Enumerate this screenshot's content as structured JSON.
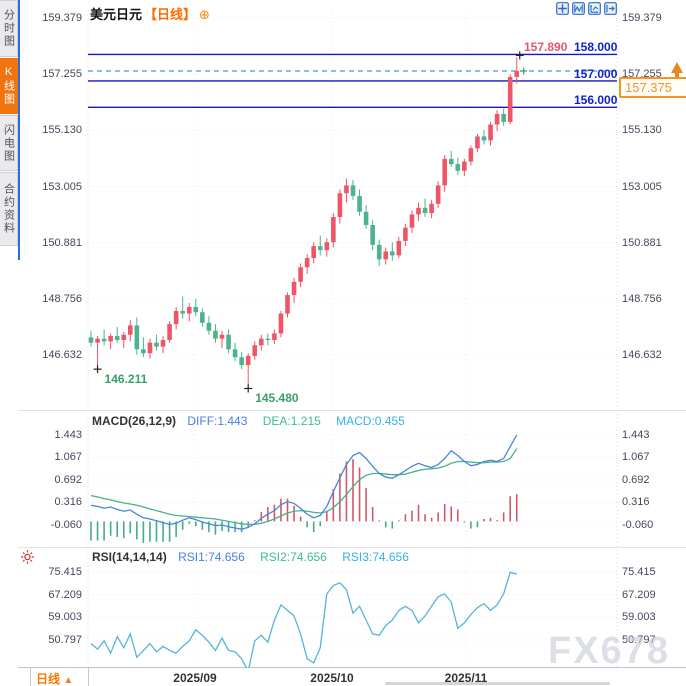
{
  "sidebar": {
    "tabs": [
      {
        "label": "分时图",
        "active": false
      },
      {
        "label": "K线图",
        "active": true
      },
      {
        "label": "闪电图",
        "active": false
      },
      {
        "label": "合约资料",
        "active": false
      }
    ]
  },
  "header": {
    "title": "美元日元",
    "period_tag": "【日线】",
    "plus_icon": "⊕",
    "toolbar_icons": [
      "crosshair",
      "time-range",
      "axis-scale",
      "export"
    ]
  },
  "price_axis": {
    "labels": [
      "159.379",
      "157.255",
      "155.130",
      "153.005",
      "150.881",
      "148.756",
      "146.632"
    ]
  },
  "levels": {
    "h_lines": [
      {
        "label": "158.000",
        "value": 158.0
      },
      {
        "label": "157.000",
        "value": 157.0
      },
      {
        "label": "156.000",
        "value": 156.0
      }
    ],
    "high_label": {
      "text": "157.890",
      "value": 157.89
    },
    "current": {
      "text": "157.375",
      "value": 157.375
    },
    "low_annotations": [
      {
        "text": "146.211",
        "value": 146.211,
        "index": 1
      },
      {
        "text": "145.480",
        "value": 145.48,
        "index": 24
      }
    ]
  },
  "macd_panel": {
    "title": "MACD(26,12,9)",
    "diff_label": "DIFF:1.443",
    "dea_label": "DEA:1.215",
    "macd_label": "MACD:0.455",
    "axis": [
      "1.443",
      "1.067",
      "0.692",
      "0.316",
      "-0.060"
    ]
  },
  "rsi_panel": {
    "title": "RSI(14,14,14)",
    "rsi1_label": "RSI1:74.656",
    "rsi2_label": "RSI2:74.656",
    "rsi3_label": "RSI3:74.656",
    "axis": [
      "75.415",
      "67.209",
      "59.003",
      "50.797"
    ]
  },
  "xaxis": {
    "labels": [
      "2025/09",
      "2025/10",
      "2025/11"
    ],
    "positions": [
      195,
      332,
      466
    ]
  },
  "bottom_bar": {
    "period": "日线",
    "arrow": "▲"
  },
  "watermark": "FX678",
  "colors": {
    "candle_up": "#ee5566",
    "candle_down": "#4cb38c",
    "hist_up": "#d05868",
    "hist_down": "#49a98d",
    "diff_line": "#4a86d8",
    "dea_line": "#46b28a",
    "rsi_line": "#56b4d9",
    "level_line": "#1416c8",
    "current_dash": "#35a0e0",
    "tag_orange": "#f59422",
    "active_tab": "#f0740f",
    "high_label_red": "#e8546c",
    "low_note_green": "#3aa06a"
  },
  "chart_data": {
    "type": "candlestick",
    "title": "美元日元 日线 (USD/JPY daily)",
    "main_ylim": [
      145.2,
      159.6
    ],
    "x_tick_labels": [
      "2025/09",
      "2025/10",
      "2025/11"
    ],
    "candles_ohlc": [
      [
        147.3,
        147.55,
        146.95,
        147.1
      ],
      [
        147.1,
        147.35,
        146.211,
        147.25
      ],
      [
        147.25,
        147.6,
        147.0,
        147.15
      ],
      [
        147.15,
        147.45,
        146.85,
        147.35
      ],
      [
        147.35,
        147.7,
        147.1,
        147.2
      ],
      [
        147.2,
        147.5,
        146.9,
        147.4
      ],
      [
        147.4,
        147.95,
        147.15,
        147.75
      ],
      [
        147.75,
        148.05,
        146.65,
        146.85
      ],
      [
        146.85,
        147.3,
        146.55,
        146.7
      ],
      [
        146.7,
        147.25,
        146.5,
        147.1
      ],
      [
        147.1,
        147.4,
        146.8,
        146.95
      ],
      [
        146.95,
        147.35,
        146.7,
        147.2
      ],
      [
        147.2,
        147.9,
        147.1,
        147.8
      ],
      [
        147.8,
        148.45,
        147.6,
        148.3
      ],
      [
        148.3,
        148.85,
        148.0,
        148.2
      ],
      [
        148.2,
        148.6,
        147.9,
        148.45
      ],
      [
        148.45,
        148.75,
        148.1,
        148.25
      ],
      [
        148.25,
        148.4,
        147.7,
        147.85
      ],
      [
        147.85,
        148.1,
        147.4,
        147.55
      ],
      [
        147.55,
        147.8,
        147.1,
        147.25
      ],
      [
        147.25,
        147.55,
        146.9,
        147.4
      ],
      [
        147.4,
        147.6,
        146.7,
        146.85
      ],
      [
        146.85,
        147.1,
        146.4,
        146.55
      ],
      [
        146.55,
        146.75,
        146.1,
        146.25
      ],
      [
        146.25,
        146.7,
        145.48,
        146.6
      ],
      [
        146.6,
        147.15,
        146.45,
        147.0
      ],
      [
        147.0,
        147.4,
        146.8,
        147.25
      ],
      [
        147.25,
        147.45,
        147.0,
        147.2
      ],
      [
        147.2,
        147.6,
        147.05,
        147.45
      ],
      [
        147.45,
        148.3,
        147.3,
        148.2
      ],
      [
        148.2,
        149.0,
        148.05,
        148.9
      ],
      [
        148.9,
        149.55,
        148.6,
        149.4
      ],
      [
        149.4,
        150.1,
        149.2,
        149.95
      ],
      [
        149.95,
        150.45,
        149.7,
        150.3
      ],
      [
        150.3,
        150.9,
        150.1,
        150.75
      ],
      [
        150.75,
        151.15,
        150.4,
        150.6
      ],
      [
        150.6,
        151.05,
        150.35,
        150.9
      ],
      [
        150.9,
        152.0,
        150.7,
        151.85
      ],
      [
        151.85,
        152.9,
        151.6,
        152.75
      ],
      [
        152.75,
        153.3,
        152.4,
        153.05
      ],
      [
        153.05,
        153.25,
        152.5,
        152.65
      ],
      [
        152.65,
        152.9,
        151.9,
        152.05
      ],
      [
        152.05,
        152.3,
        151.4,
        151.55
      ],
      [
        151.55,
        151.75,
        150.6,
        150.8
      ],
      [
        150.8,
        151.0,
        150.0,
        150.25
      ],
      [
        150.25,
        150.7,
        150.05,
        150.55
      ],
      [
        150.55,
        150.9,
        150.2,
        150.4
      ],
      [
        150.4,
        151.1,
        150.3,
        150.95
      ],
      [
        150.95,
        151.6,
        150.75,
        151.45
      ],
      [
        151.45,
        152.1,
        151.25,
        151.95
      ],
      [
        151.95,
        152.4,
        151.7,
        152.2
      ],
      [
        152.2,
        152.55,
        151.85,
        152.0
      ],
      [
        152.0,
        152.5,
        151.8,
        152.35
      ],
      [
        152.35,
        153.2,
        152.2,
        153.05
      ],
      [
        153.05,
        154.2,
        152.8,
        154.05
      ],
      [
        154.05,
        154.35,
        153.75,
        153.85
      ],
      [
        153.85,
        154.1,
        153.45,
        153.6
      ],
      [
        153.6,
        154.05,
        153.4,
        153.95
      ],
      [
        153.95,
        154.55,
        153.8,
        154.45
      ],
      [
        154.45,
        155.0,
        154.3,
        154.9
      ],
      [
        154.9,
        155.15,
        154.6,
        154.75
      ],
      [
        154.75,
        155.45,
        154.55,
        155.35
      ],
      [
        155.35,
        155.9,
        155.1,
        155.75
      ],
      [
        155.75,
        155.95,
        155.3,
        155.45
      ],
      [
        155.45,
        157.25,
        155.35,
        157.15
      ],
      [
        157.15,
        157.89,
        156.9,
        157.375
      ]
    ],
    "macd": {
      "params": [
        26,
        12,
        9
      ],
      "diff": [
        0.27,
        0.25,
        0.22,
        0.24,
        0.2,
        0.17,
        0.19,
        0.12,
        0.06,
        0.04,
        0.01,
        -0.02,
        -0.05,
        -0.03,
        0.02,
        0.06,
        0.03,
        -0.01,
        -0.04,
        -0.07,
        -0.06,
        -0.09,
        -0.11,
        -0.13,
        -0.1,
        -0.04,
        0.05,
        0.12,
        0.18,
        0.28,
        0.33,
        0.3,
        0.22,
        0.12,
        0.06,
        0.1,
        0.25,
        0.5,
        0.73,
        0.95,
        1.1,
        1.15,
        1.05,
        0.92,
        0.8,
        0.74,
        0.72,
        0.78,
        0.85,
        0.92,
        0.97,
        0.93,
        0.9,
        0.95,
        1.05,
        1.18,
        1.1,
        1.0,
        0.93,
        0.95,
        1.0,
        1.02,
        1.0,
        1.05,
        1.25,
        1.443
      ],
      "dea": [
        0.43,
        0.41,
        0.38,
        0.36,
        0.33,
        0.31,
        0.29,
        0.27,
        0.24,
        0.21,
        0.18,
        0.15,
        0.12,
        0.1,
        0.09,
        0.08,
        0.07,
        0.06,
        0.05,
        0.04,
        0.02,
        0.0,
        -0.02,
        -0.04,
        -0.05,
        -0.05,
        -0.03,
        0.0,
        0.04,
        0.09,
        0.14,
        0.17,
        0.18,
        0.17,
        0.15,
        0.14,
        0.16,
        0.23,
        0.33,
        0.45,
        0.58,
        0.7,
        0.77,
        0.8,
        0.8,
        0.79,
        0.78,
        0.78,
        0.79,
        0.82,
        0.85,
        0.87,
        0.88,
        0.89,
        0.92,
        0.97,
        1.0,
        1.0,
        0.99,
        0.98,
        0.98,
        0.99,
        0.99,
        1.0,
        1.05,
        1.215
      ],
      "hist": [
        -0.32,
        -0.32,
        -0.32,
        -0.24,
        -0.26,
        -0.28,
        -0.2,
        -0.3,
        -0.36,
        -0.34,
        -0.34,
        -0.34,
        -0.34,
        -0.26,
        -0.14,
        -0.04,
        -0.08,
        -0.14,
        -0.18,
        -0.22,
        -0.16,
        -0.18,
        -0.18,
        -0.18,
        -0.1,
        0.02,
        0.16,
        0.24,
        0.28,
        0.38,
        0.38,
        0.26,
        0.08,
        -0.1,
        -0.18,
        -0.08,
        0.18,
        0.54,
        0.8,
        1.0,
        1.04,
        0.9,
        0.56,
        0.24,
        0.0,
        -0.1,
        -0.12,
        0.0,
        0.12,
        0.18,
        0.28,
        0.12,
        0.06,
        0.15,
        0.29,
        0.25,
        0.2,
        -0.02,
        -0.12,
        -0.1,
        0.04,
        0.06,
        0.02,
        0.15,
        0.42,
        0.455
      ],
      "last": {
        "diff": 1.443,
        "dea": 1.215,
        "macd": 0.455
      }
    },
    "rsi": {
      "params": [
        14,
        14,
        14
      ],
      "values": [
        49.5,
        47.5,
        50.5,
        46.0,
        52.0,
        48.0,
        53.0,
        44.5,
        47.0,
        49.5,
        46.5,
        48.5,
        47.0,
        46.0,
        48.5,
        50.5,
        54.5,
        52.5,
        50.0,
        47.0,
        51.5,
        47.0,
        46.5,
        44.0,
        39.5,
        50.5,
        52.5,
        50.0,
        58.0,
        63.5,
        61.5,
        59.5,
        53.0,
        44.0,
        42.5,
        48.0,
        67.5,
        70.5,
        71.5,
        69.0,
        60.5,
        63.0,
        58.0,
        53.0,
        52.5,
        56.0,
        58.0,
        61.5,
        63.0,
        61.5,
        57.0,
        59.5,
        63.0,
        66.5,
        67.5,
        64.5,
        55.0,
        57.0,
        60.0,
        62.5,
        64.0,
        61.5,
        63.5,
        67.5,
        75.3,
        74.656
      ],
      "last": {
        "rsi1": 74.656,
        "rsi2": 74.656,
        "rsi3": 74.656
      }
    }
  }
}
